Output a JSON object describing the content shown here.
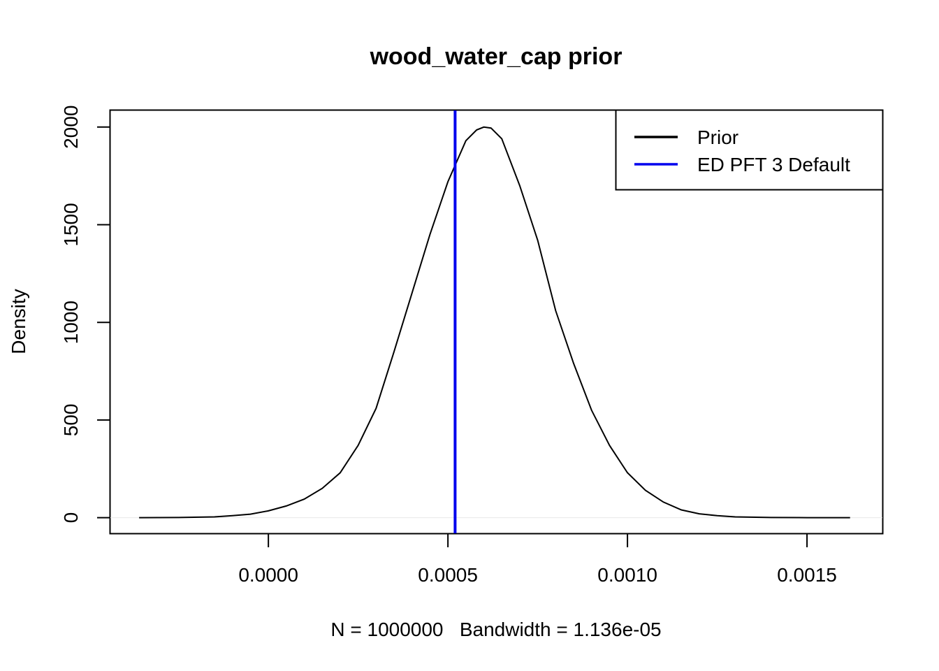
{
  "chart_data": {
    "type": "line",
    "title": "wood_water_cap prior",
    "xlabel": "N = 1000000   Bandwidth = 1.136e-05",
    "ylabel": "Density",
    "xlim": [
      -0.00044,
      0.00171
    ],
    "ylim": [
      -80,
      2085
    ],
    "x_ticks": [
      0.0,
      0.0005,
      0.001,
      0.0015
    ],
    "x_tick_labels": [
      "0.0000",
      "0.0005",
      "0.0010",
      "0.0015"
    ],
    "y_ticks": [
      0,
      500,
      1000,
      1500,
      2000
    ],
    "y_tick_labels": [
      "0",
      "500",
      "1000",
      "1500",
      "2000"
    ],
    "legend_position": "top-right",
    "series": [
      {
        "name": "Prior",
        "color": "#000000",
        "x": [
          -0.00036,
          -0.00025,
          -0.00015,
          -0.0001,
          -5e-05,
          0.0,
          5e-05,
          0.0001,
          0.00015,
          0.0002,
          0.00025,
          0.0003,
          0.00035,
          0.0004,
          0.00045,
          0.0005,
          0.00055,
          0.00058,
          0.0006,
          0.00062,
          0.00065,
          0.0007,
          0.00075,
          0.0008,
          0.00085,
          0.0009,
          0.00095,
          0.001,
          0.00105,
          0.0011,
          0.00115,
          0.0012,
          0.00125,
          0.0013,
          0.0014,
          0.0015,
          0.00162
        ],
        "values": [
          0,
          1,
          4,
          10,
          18,
          35,
          60,
          95,
          150,
          230,
          370,
          560,
          850,
          1150,
          1450,
          1720,
          1930,
          1985,
          2000,
          1995,
          1940,
          1700,
          1420,
          1060,
          790,
          550,
          370,
          230,
          140,
          80,
          40,
          20,
          10,
          4,
          1,
          0,
          0
        ]
      },
      {
        "name": "ED PFT 3 Default",
        "color": "#0000ee",
        "vline_x": 0.00052
      }
    ]
  }
}
